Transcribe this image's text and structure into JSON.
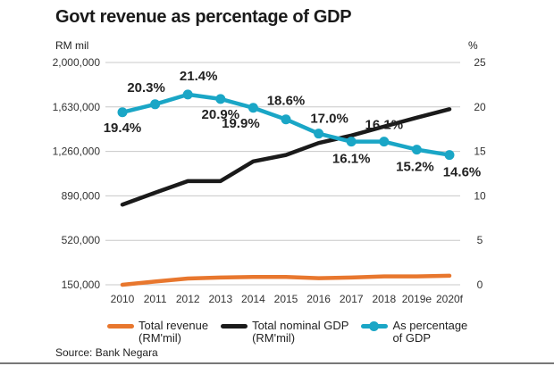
{
  "chart_data": {
    "type": "line",
    "title": "Govt revenue as percentage of GDP",
    "categories": [
      "2010",
      "2011",
      "2012",
      "2013",
      "2014",
      "2015",
      "2016",
      "2017",
      "2018",
      "2019e",
      "2020f"
    ],
    "left_axis": {
      "label": "RM mil",
      "min": 150000,
      "max": 2000000,
      "ticks": [
        "150,000",
        "520,000",
        "890,000",
        "1,260,000",
        "1,630,000",
        "2,000,000"
      ]
    },
    "right_axis": {
      "label": "%",
      "min": 0,
      "max": 25,
      "ticks": [
        "0",
        "5",
        "10",
        "15",
        "20",
        "25"
      ]
    },
    "grid": true,
    "legend_position": "bottom",
    "series": [
      {
        "name": "Total revenue (RM'mil)",
        "axis": "left",
        "color": "#e8772e",
        "values": [
          150000,
          177000,
          202000,
          210000,
          215000,
          215000,
          205000,
          210000,
          220000,
          220000,
          225000
        ]
      },
      {
        "name": "Total nominal GDP (RM'mil)",
        "axis": "left",
        "color": "#1a1a1a",
        "values": [
          817000,
          916000,
          1013000,
          1013000,
          1177000,
          1230000,
          1330000,
          1392000,
          1467000,
          1541000,
          1611000
        ]
      },
      {
        "name": "As percentage of GDP",
        "axis": "right",
        "color": "#1aa6c6",
        "values": [
          19.4,
          20.3,
          21.4,
          20.9,
          19.9,
          18.6,
          17.0,
          16.1,
          16.1,
          15.2,
          14.6
        ],
        "labels": [
          "19.4%",
          "20.3%",
          "21.4%",
          "20.9%",
          "19.9%",
          "18.6%",
          "17.0%",
          "16.1%",
          "16.1%",
          "15.2%",
          "14.6%"
        ]
      }
    ],
    "legend": [
      {
        "line1": "Total revenue",
        "line2": "(RM'mil)"
      },
      {
        "line1": "Total nominal GDP",
        "line2": "(RM'mil)"
      },
      {
        "line1": "As percentage",
        "line2": "of GDP"
      }
    ],
    "source": "Source: Bank Negara"
  }
}
